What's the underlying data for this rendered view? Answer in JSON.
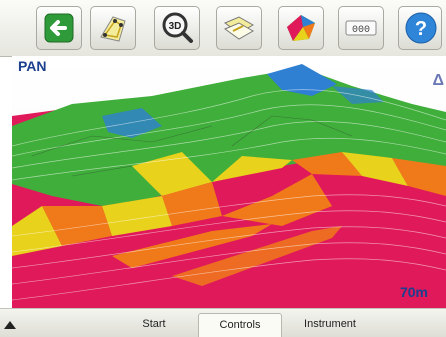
{
  "toolbar": {
    "buttons": [
      {
        "name": "back-arrow-icon"
      },
      {
        "name": "survey-points-icon"
      },
      {
        "name": "zoom-3d-icon",
        "label": "3D"
      },
      {
        "name": "layers-icon"
      },
      {
        "name": "terrain-model-icon"
      },
      {
        "name": "keypad-icon",
        "label": "000"
      },
      {
        "name": "help-icon",
        "label": "?"
      }
    ]
  },
  "view": {
    "mode_label": "PAN",
    "scale_label": "70m",
    "orientation_glyph": "Δ"
  },
  "tabs": [
    {
      "label": "Start",
      "active": false
    },
    {
      "label": "Controls",
      "active": true
    },
    {
      "label": "Instrument",
      "active": false
    }
  ],
  "colors": {
    "cut_magenta": "#e0195a",
    "fill_green": "#3fae3a",
    "orange": "#f07a1a",
    "yellow": "#e8d21c",
    "blue": "#2f7fd3",
    "navy": "#1b3f8f"
  }
}
